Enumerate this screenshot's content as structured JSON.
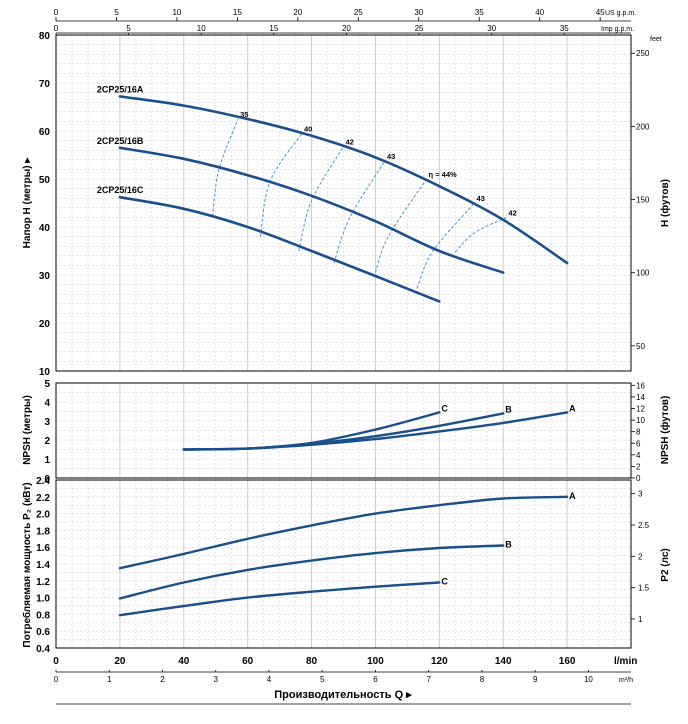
{
  "chart_data": {
    "type": "line",
    "top_axes": {
      "us_gpm": {
        "unit": "US g.p.m.",
        "ticks": [
          0,
          5,
          10,
          15,
          20,
          25,
          30,
          35,
          40,
          45
        ]
      },
      "imp_gpm": {
        "unit": "Imp g.p.m.",
        "ticks": [
          0,
          5,
          10,
          15,
          20,
          25,
          30,
          35
        ]
      }
    },
    "bottom_axes": {
      "lmin": {
        "unit": "l/min",
        "ticks": [
          0,
          20,
          40,
          60,
          80,
          100,
          120,
          140,
          160
        ]
      },
      "m3h": {
        "unit": "m³/h",
        "ticks": [
          0,
          1,
          2,
          3,
          4,
          5,
          6,
          7,
          8,
          9,
          10
        ]
      },
      "xlabel": "Производительность Q ▸"
    },
    "head": {
      "ylabel": "Напор H (метры) ▸",
      "ylabel_right": "H (футов)",
      "right_unit": "feet",
      "ylim": [
        10,
        80
      ],
      "yticks": [
        10,
        20,
        30,
        40,
        50,
        60,
        70,
        80
      ],
      "right_ticks": [
        50,
        100,
        150,
        200,
        250
      ],
      "series": [
        {
          "name": "2CP25/16A",
          "x": [
            20,
            40,
            60,
            80,
            100,
            120,
            140,
            160
          ],
          "y": [
            67.2,
            65.3,
            62.5,
            59.0,
            54.5,
            48.5,
            41.5,
            32.5
          ]
        },
        {
          "name": "2CP25/16B",
          "x": [
            20,
            40,
            60,
            80,
            100,
            120,
            140
          ],
          "y": [
            56.5,
            54.2,
            50.8,
            46.5,
            41.2,
            35.0,
            30.5
          ]
        },
        {
          "name": "2CP25/16C",
          "x": [
            20,
            40,
            60,
            80,
            100,
            120
          ],
          "y": [
            46.2,
            43.8,
            40.0,
            35.0,
            29.8,
            24.5
          ]
        }
      ],
      "efficiency_curves": [
        {
          "label": "35",
          "x": [
            49,
            51,
            57
          ],
          "y": [
            42.2,
            52.0,
            62.5
          ]
        },
        {
          "label": "40",
          "x": [
            64,
            67,
            77
          ],
          "y": [
            38.0,
            49.5,
            59.5
          ]
        },
        {
          "label": "42",
          "x": [
            76,
            80,
            90
          ],
          "y": [
            35.0,
            45.5,
            56.8
          ]
        },
        {
          "label": "43",
          "x": [
            87,
            92,
            103
          ],
          "y": [
            32.5,
            42.0,
            53.8
          ]
        },
        {
          "label": "η = 44%",
          "x": [
            100,
            104,
            116
          ],
          "y": [
            30.5,
            38.0,
            50.0
          ]
        },
        {
          "label": "43",
          "x": [
            113,
            118,
            131
          ],
          "y": [
            27.2,
            35.0,
            45.0
          ]
        },
        {
          "label": "42",
          "x": [
            125,
            131,
            141
          ],
          "y": [
            34.8,
            38.8,
            42.0
          ]
        }
      ]
    },
    "npsh": {
      "ylabel": "NPSH (метры)",
      "ylabel_right": "NPSH (футов)",
      "ylim": [
        0,
        5
      ],
      "yticks": [
        0,
        1,
        2,
        3,
        4,
        5
      ],
      "right_ticks": [
        0,
        2,
        4,
        6,
        8,
        10,
        12,
        14,
        16
      ],
      "series": [
        {
          "name": "A",
          "x": [
            40,
            60,
            80,
            100,
            120,
            140,
            160
          ],
          "y": [
            1.5,
            1.55,
            1.75,
            2.05,
            2.45,
            2.9,
            3.45
          ]
        },
        {
          "name": "B",
          "x": [
            40,
            60,
            80,
            100,
            120,
            140
          ],
          "y": [
            1.5,
            1.55,
            1.8,
            2.2,
            2.75,
            3.4
          ]
        },
        {
          "name": "C",
          "x": [
            40,
            60,
            80,
            100,
            120
          ],
          "y": [
            1.5,
            1.55,
            1.85,
            2.55,
            3.45
          ]
        }
      ]
    },
    "power": {
      "ylabel": "Потребляемая мощность P₂ (кВт)",
      "ylabel_right": "P2 (лс)",
      "ylim": [
        0.4,
        2.4
      ],
      "yticks": [
        0.4,
        0.6,
        0.8,
        1.0,
        1.2,
        1.4,
        1.6,
        1.8,
        2.0,
        2.2,
        2.4
      ],
      "right_ticks": [
        1,
        1.5,
        2,
        2.5,
        3
      ],
      "series": [
        {
          "name": "A",
          "x": [
            20,
            40,
            60,
            80,
            100,
            120,
            140,
            160
          ],
          "y": [
            1.35,
            1.52,
            1.7,
            1.86,
            2.0,
            2.1,
            2.18,
            2.2
          ]
        },
        {
          "name": "B",
          "x": [
            20,
            40,
            60,
            80,
            100,
            120,
            140
          ],
          "y": [
            0.99,
            1.18,
            1.33,
            1.44,
            1.53,
            1.59,
            1.62
          ]
        },
        {
          "name": "C",
          "x": [
            20,
            40,
            60,
            80,
            100,
            120
          ],
          "y": [
            0.79,
            0.9,
            1.0,
            1.07,
            1.13,
            1.18
          ]
        }
      ]
    },
    "colors": {
      "curve": "#1a4f8c",
      "efficiency": "#4a8fd0",
      "grid": "#c8c8c8",
      "axis": "#000000"
    }
  }
}
